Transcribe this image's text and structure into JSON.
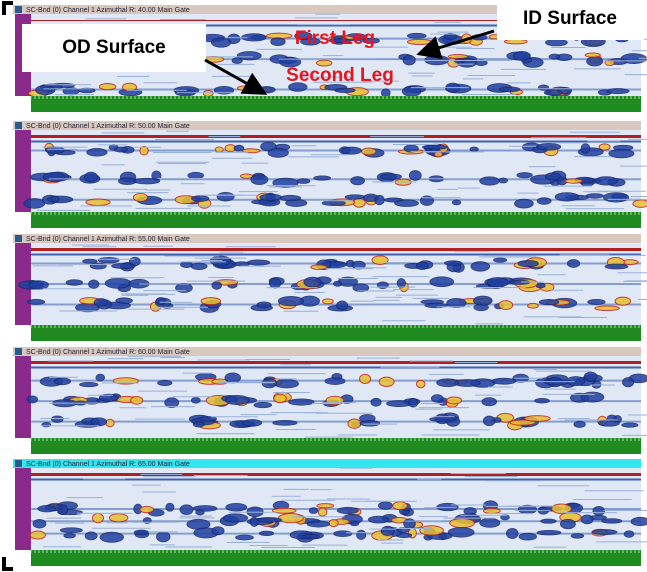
{
  "annotations": {
    "od_surface": "OD Surface",
    "id_surface": "ID Surface",
    "first_leg": "First Leg",
    "second_leg": "Second Leg"
  },
  "panels": [
    {
      "title": "SC-Bnd (0) Channel 1 Azimuthal  R: 40.00 Main Gate"
    },
    {
      "title": "SC-Bnd (0) Channel 1 Azimuthal  R: 50.00 Main Gate"
    },
    {
      "title": "SC-Bnd (0) Channel 1 Azimuthal  R: 55.00 Main Gate"
    },
    {
      "title": "SC-Bnd (0) Channel 1 Azimuthal  R: 60.00 Main Gate"
    },
    {
      "title": "SC-Bnd (0) Channel 1 Azimuthal  R: 65.00 Main Gate"
    }
  ]
}
